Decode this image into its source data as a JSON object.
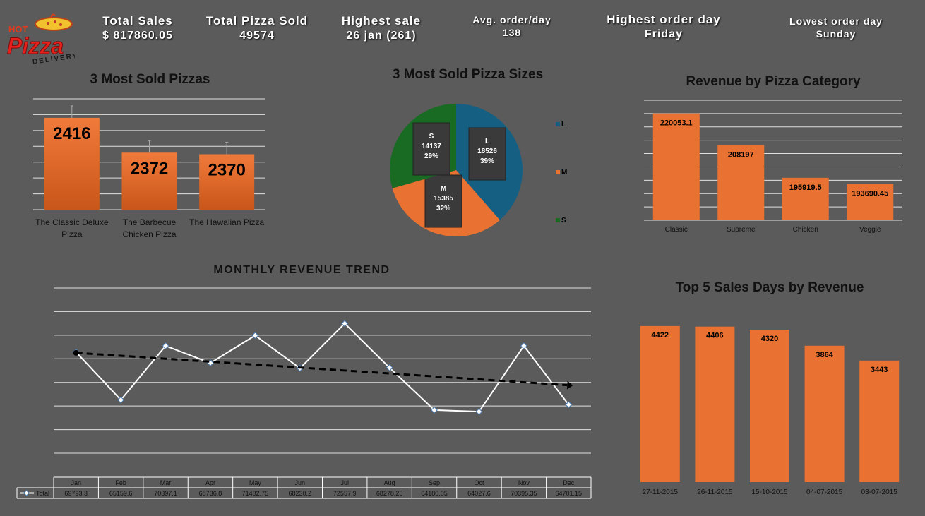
{
  "header": {
    "logo": {
      "top": "HOT",
      "main": "Pizza",
      "bottom": "DELIVERY"
    },
    "kpis": [
      {
        "label": "Total Sales",
        "value": "$ 817860.05"
      },
      {
        "label": "Total Pizza Sold",
        "value": "49574"
      },
      {
        "label": "Highest sale",
        "value": "26 jan (261)"
      },
      {
        "label": "Avg. order/day",
        "value": "138"
      },
      {
        "label": "Highest order day",
        "value": "Friday"
      },
      {
        "label": "Lowest order day",
        "value": "Sunday"
      }
    ]
  },
  "colors": {
    "orange": "#e97132",
    "blue": "#156082",
    "green": "#196b24",
    "background": "#5b5b5b"
  },
  "chart_data": [
    {
      "id": "most_sold",
      "type": "bar",
      "title": "3 Most Sold Pizzas",
      "categories": [
        "The Classic Deluxe Pizza",
        "The Barbecue Chicken Pizza",
        "The Hawaiian Pizza"
      ],
      "category_lines": [
        [
          "The Classic Deluxe",
          "Pizza"
        ],
        [
          "The Barbecue",
          "Chicken Pizza"
        ],
        [
          "The Hawaiian Pizza"
        ]
      ],
      "values": [
        2416,
        2372,
        2370
      ],
      "data_labels": [
        "2416",
        "2372",
        "2370"
      ],
      "ylim": [
        2300,
        2440
      ],
      "grid": true
    },
    {
      "id": "sizes",
      "type": "pie",
      "title": "3 Most Sold Pizza Sizes",
      "slices": [
        {
          "name": "L",
          "value": 18526,
          "pct": "39%",
          "color": "#156082"
        },
        {
          "name": "M",
          "value": 15385,
          "pct": "32%",
          "color": "#e97132"
        },
        {
          "name": "S",
          "value": 14137,
          "pct": "29%",
          "color": "#196b24"
        }
      ],
      "legend": "right"
    },
    {
      "id": "category",
      "type": "bar",
      "title": "Revenue by Pizza Category",
      "categories": [
        "Classic",
        "Supreme",
        "Chicken",
        "Veggie"
      ],
      "values": [
        220053.1,
        208197,
        195919.5,
        193690.45
      ],
      "data_labels": [
        "220053.1",
        "208197",
        "195919.5",
        "193690.45"
      ],
      "ylim": [
        180000,
        225000
      ],
      "grid": true
    },
    {
      "id": "monthly",
      "type": "line",
      "title": "MONTHLY REVENUE TREND",
      "categories": [
        "Jan",
        "Feb",
        "Mar",
        "Apr",
        "May",
        "Jun",
        "Jul",
        "Aug",
        "Sep",
        "Oct",
        "Nov",
        "Dec"
      ],
      "series": [
        {
          "name": "Total",
          "values": [
            69793.3,
            65159.6,
            70397.1,
            68736.8,
            71402.75,
            68230.2,
            72557.9,
            68278.25,
            64180.05,
            64027.6,
            70395.35,
            64701.15
          ]
        }
      ],
      "table_values": [
        "69793.3",
        "65159.6",
        "70397.1",
        "68736.8",
        "71402.75",
        "68230.2",
        "72557.9",
        "68278.25",
        "64180.05",
        "64027.6",
        "70395.35",
        "64701.15"
      ],
      "trendline": "linear",
      "ylim": [
        60000,
        76000
      ],
      "grid": true
    },
    {
      "id": "top_days",
      "type": "bar",
      "title": "Top 5 Sales Days by Revenue",
      "categories": [
        "27-11-2015",
        "26-11-2015",
        "15-10-2015",
        "04-07-2015",
        "03-07-2015"
      ],
      "values": [
        4422,
        4406,
        4320,
        3864,
        3443
      ],
      "data_labels": [
        "4422",
        "4406",
        "4320",
        "3864",
        "3443"
      ],
      "ylim": [
        0,
        4500
      ],
      "grid": false
    }
  ]
}
